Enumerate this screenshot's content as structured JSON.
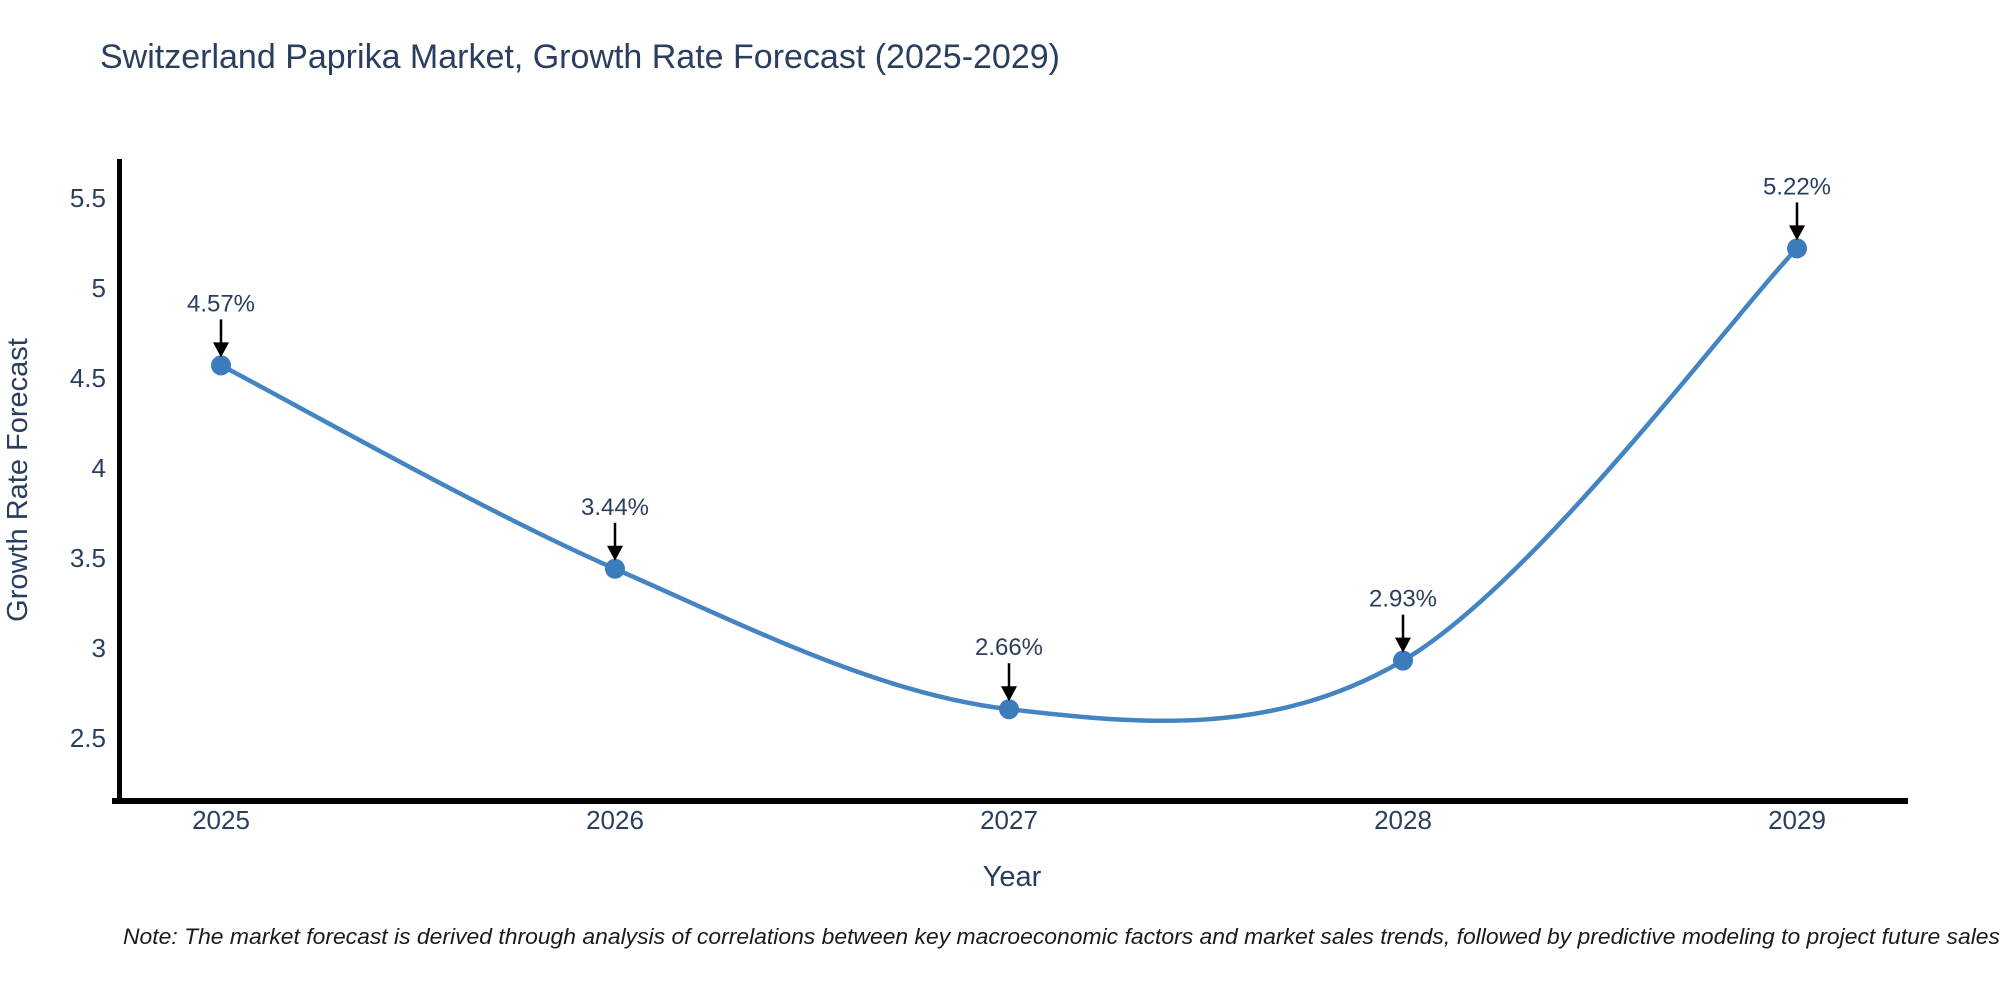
{
  "title": "Switzerland Paprika Market, Growth Rate Forecast (2025-2029)",
  "note": "Note: The market forecast is derived through analysis of correlations between key macroeconomic factors and market sales trends, followed by predictive modeling to project future sales",
  "colors": {
    "background": "#ffffff",
    "title_text": "#2a3f5f",
    "tick_text": "#2a3f5f",
    "axis_line": "#000000",
    "line": "#4484c2",
    "marker": "#3c7cbd",
    "annotation_text": "#2a3f5f",
    "arrow": "#000000",
    "note_text": "#1a1a1a"
  },
  "chart_data": {
    "type": "line",
    "title": "Switzerland Paprika Market, Growth Rate Forecast (2025-2029)",
    "xlabel": "Year",
    "ylabel": "Growth Rate Forecast",
    "x": [
      2025,
      2026,
      2027,
      2028,
      2029
    ],
    "values": [
      4.57,
      3.44,
      2.66,
      2.93,
      5.22
    ],
    "point_labels": [
      "4.57%",
      "3.44%",
      "2.66%",
      "2.93%",
      "5.22%"
    ],
    "series_name": "Growth Rate Forecast",
    "yticks": [
      2.5,
      3,
      3.5,
      4,
      4.5,
      5,
      5.5
    ],
    "ylim": [
      2.15,
      5.75
    ],
    "line_shape": "spline",
    "markers": true,
    "grid": false,
    "legend": false,
    "annotations": "each point labeled with percent value and a downward black arrow"
  }
}
